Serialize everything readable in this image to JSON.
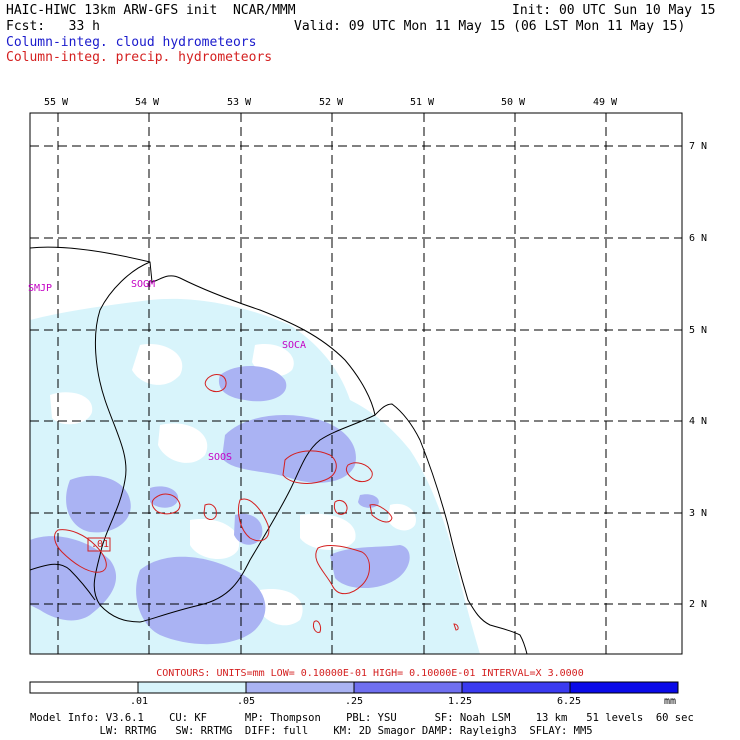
{
  "header": {
    "title_left": "HAIC-HIWC 13km ARW-GFS init  NCAR/MMM",
    "init_right": "Init: 00 UTC Sun 10 May 15",
    "fcst": "Fcst:   33 h",
    "valid": "Valid: 09 UTC Mon 11 May 15 (06 LST Mon 11 May 15)",
    "field_cloud": "Column-integ. cloud hydrometeors",
    "field_precip": "Column-integ. precip. hydrometeors"
  },
  "map": {
    "lon_labels": [
      "55 W",
      "54 W",
      "53 W",
      "52 W",
      "51 W",
      "50 W",
      "49 W"
    ],
    "lat_labels": [
      "7 N",
      "6 N",
      "5 N",
      "4 N",
      "3 N",
      "2 N"
    ],
    "stations": [
      "SMJP",
      "SOGM",
      "SOCA",
      "SOOS"
    ],
    "contour_label": ".01"
  },
  "contours_line": "CONTOURS:  UNITS=mm  LOW= 0.10000E-01  HIGH= 0.10000E-01  INTERVAL=X  3.0000",
  "colorbar": {
    "labels": [
      ".01",
      ".05",
      ".25",
      "1.25",
      "6.25"
    ],
    "unit": "mm",
    "colors": [
      "#ffffff",
      "#d8f4fb",
      "#aab3f3",
      "#6f6ff0",
      "#3a3af0",
      "#0a0ae8"
    ]
  },
  "model_info": {
    "line1": "Model Info: V3.6.1    CU: KF      MP: Thompson    PBL: YSU      SF: Noah LSM    13 km   51 levels  60 sec",
    "line2": "           LW: RRTMG   SW: RRTMG  DIFF: full    KM: 2D Smagor DAMP: Rayleigh3  SFLAY: MM5"
  }
}
